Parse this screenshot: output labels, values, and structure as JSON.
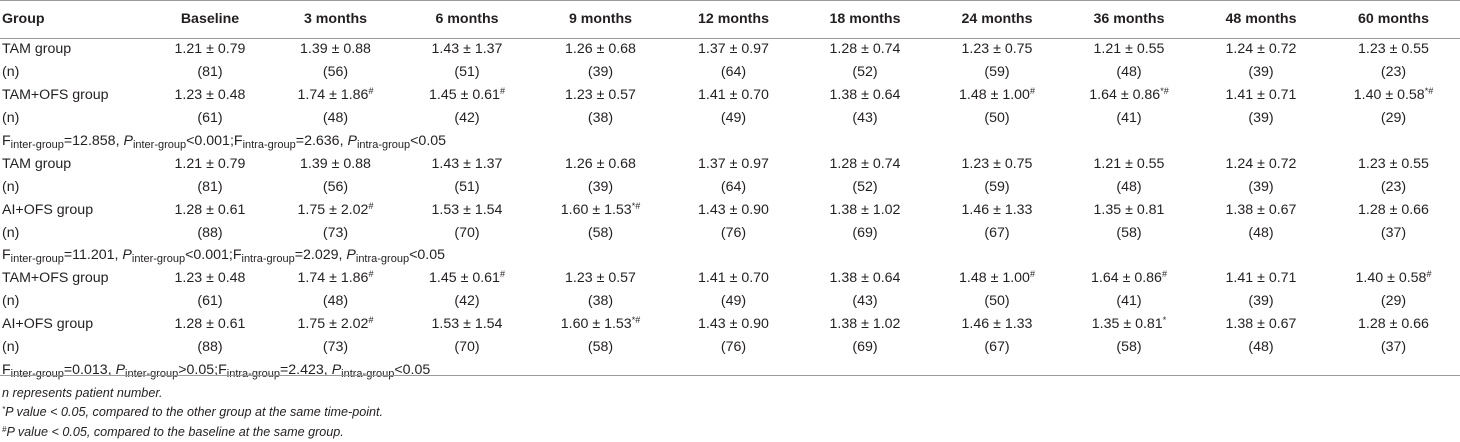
{
  "table": {
    "headers": [
      "Group",
      "Baseline",
      "3 months",
      "6 months",
      "9 months",
      "12 months",
      "18 months",
      "24 months",
      "36 months",
      "48 months",
      "60 months"
    ],
    "blocks": [
      {
        "rows": [
          {
            "label": "TAM group",
            "cells": [
              {
                "v": "1.21 ± 0.79",
                "s": ""
              },
              {
                "v": "1.39 ± 0.88",
                "s": ""
              },
              {
                "v": "1.43 ± 1.37",
                "s": ""
              },
              {
                "v": "1.26 ± 0.68",
                "s": ""
              },
              {
                "v": "1.37 ± 0.97",
                "s": ""
              },
              {
                "v": "1.28 ± 0.74",
                "s": ""
              },
              {
                "v": "1.23 ± 0.75",
                "s": ""
              },
              {
                "v": "1.21 ± 0.55",
                "s": ""
              },
              {
                "v": "1.24 ± 0.72",
                "s": ""
              },
              {
                "v": "1.23 ± 0.55",
                "s": ""
              }
            ]
          },
          {
            "label": "(n)",
            "cells": [
              {
                "v": "(81)",
                "s": ""
              },
              {
                "v": "(56)",
                "s": ""
              },
              {
                "v": "(51)",
                "s": ""
              },
              {
                "v": "(39)",
                "s": ""
              },
              {
                "v": "(64)",
                "s": ""
              },
              {
                "v": "(52)",
                "s": ""
              },
              {
                "v": "(59)",
                "s": ""
              },
              {
                "v": "(48)",
                "s": ""
              },
              {
                "v": "(39)",
                "s": ""
              },
              {
                "v": "(23)",
                "s": ""
              }
            ]
          },
          {
            "label": "TAM+OFS group",
            "cells": [
              {
                "v": "1.23 ± 0.48",
                "s": ""
              },
              {
                "v": "1.74 ± 1.86",
                "s": "#"
              },
              {
                "v": "1.45 ± 0.61",
                "s": "#"
              },
              {
                "v": "1.23 ± 0.57",
                "s": ""
              },
              {
                "v": "1.41 ± 0.70",
                "s": ""
              },
              {
                "v": "1.38 ± 0.64",
                "s": ""
              },
              {
                "v": "1.48 ± 1.00",
                "s": "#"
              },
              {
                "v": "1.64 ± 0.86",
                "s": "*#"
              },
              {
                "v": "1.41 ± 0.71",
                "s": ""
              },
              {
                "v": "1.40 ± 0.58",
                "s": "*#"
              }
            ]
          },
          {
            "label": "(n)",
            "cells": [
              {
                "v": "(61)",
                "s": ""
              },
              {
                "v": "(48)",
                "s": ""
              },
              {
                "v": "(42)",
                "s": ""
              },
              {
                "v": "(38)",
                "s": ""
              },
              {
                "v": "(49)",
                "s": ""
              },
              {
                "v": "(43)",
                "s": ""
              },
              {
                "v": "(50)",
                "s": ""
              },
              {
                "v": "(41)",
                "s": ""
              },
              {
                "v": "(39)",
                "s": ""
              },
              {
                "v": "(29)",
                "s": ""
              }
            ]
          }
        ],
        "stats": {
          "f_inter": "12.858",
          "p_inter": "<0.001",
          "f_intra": "2.636",
          "p_intra": "<0.05"
        }
      },
      {
        "rows": [
          {
            "label": "TAM group",
            "cells": [
              {
                "v": "1.21 ± 0.79",
                "s": ""
              },
              {
                "v": "1.39 ± 0.88",
                "s": ""
              },
              {
                "v": "1.43 ± 1.37",
                "s": ""
              },
              {
                "v": "1.26 ± 0.68",
                "s": ""
              },
              {
                "v": "1.37 ± 0.97",
                "s": ""
              },
              {
                "v": "1.28 ± 0.74",
                "s": ""
              },
              {
                "v": "1.23 ± 0.75",
                "s": ""
              },
              {
                "v": "1.21 ± 0.55",
                "s": ""
              },
              {
                "v": "1.24 ± 0.72",
                "s": ""
              },
              {
                "v": "1.23 ± 0.55",
                "s": ""
              }
            ]
          },
          {
            "label": "(n)",
            "cells": [
              {
                "v": "(81)",
                "s": ""
              },
              {
                "v": "(56)",
                "s": ""
              },
              {
                "v": "(51)",
                "s": ""
              },
              {
                "v": "(39)",
                "s": ""
              },
              {
                "v": "(64)",
                "s": ""
              },
              {
                "v": "(52)",
                "s": ""
              },
              {
                "v": "(59)",
                "s": ""
              },
              {
                "v": "(48)",
                "s": ""
              },
              {
                "v": "(39)",
                "s": ""
              },
              {
                "v": "(23)",
                "s": ""
              }
            ]
          },
          {
            "label": "AI+OFS group",
            "cells": [
              {
                "v": "1.28 ± 0.61",
                "s": ""
              },
              {
                "v": "1.75 ± 2.02",
                "s": "#"
              },
              {
                "v": "1.53 ± 1.54",
                "s": ""
              },
              {
                "v": "1.60 ± 1.53",
                "s": "*#"
              },
              {
                "v": "1.43 ± 0.90",
                "s": ""
              },
              {
                "v": "1.38 ± 1.02",
                "s": ""
              },
              {
                "v": "1.46 ± 1.33",
                "s": ""
              },
              {
                "v": "1.35 ± 0.81",
                "s": ""
              },
              {
                "v": "1.38 ± 0.67",
                "s": ""
              },
              {
                "v": "1.28 ± 0.66",
                "s": ""
              }
            ]
          },
          {
            "label": "(n)",
            "cells": [
              {
                "v": "(88)",
                "s": ""
              },
              {
                "v": "(73)",
                "s": ""
              },
              {
                "v": "(70)",
                "s": ""
              },
              {
                "v": "(58)",
                "s": ""
              },
              {
                "v": "(76)",
                "s": ""
              },
              {
                "v": "(69)",
                "s": ""
              },
              {
                "v": "(67)",
                "s": ""
              },
              {
                "v": "(58)",
                "s": ""
              },
              {
                "v": "(48)",
                "s": ""
              },
              {
                "v": "(37)",
                "s": ""
              }
            ]
          }
        ],
        "stats": {
          "f_inter": "11.201",
          "p_inter": "<0.001",
          "f_intra": "2.029",
          "p_intra": "<0.05"
        }
      },
      {
        "rows": [
          {
            "label": "TAM+OFS group",
            "cells": [
              {
                "v": "1.23 ± 0.48",
                "s": ""
              },
              {
                "v": "1.74 ± 1.86",
                "s": "#"
              },
              {
                "v": "1.45 ± 0.61",
                "s": "#"
              },
              {
                "v": "1.23 ± 0.57",
                "s": ""
              },
              {
                "v": "1.41 ± 0.70",
                "s": ""
              },
              {
                "v": "1.38 ± 0.64",
                "s": ""
              },
              {
                "v": "1.48 ± 1.00",
                "s": "#"
              },
              {
                "v": "1.64 ± 0.86",
                "s": "#"
              },
              {
                "v": "1.41 ± 0.71",
                "s": ""
              },
              {
                "v": "1.40 ± 0.58",
                "s": "#"
              }
            ]
          },
          {
            "label": "(n)",
            "cells": [
              {
                "v": "(61)",
                "s": ""
              },
              {
                "v": "(48)",
                "s": ""
              },
              {
                "v": "(42)",
                "s": ""
              },
              {
                "v": "(38)",
                "s": ""
              },
              {
                "v": "(49)",
                "s": ""
              },
              {
                "v": "(43)",
                "s": ""
              },
              {
                "v": "(50)",
                "s": ""
              },
              {
                "v": "(41)",
                "s": ""
              },
              {
                "v": "(39)",
                "s": ""
              },
              {
                "v": "(29)",
                "s": ""
              }
            ]
          },
          {
            "label": "AI+OFS group",
            "cells": [
              {
                "v": "1.28 ± 0.61",
                "s": ""
              },
              {
                "v": "1.75 ± 2.02",
                "s": "#"
              },
              {
                "v": "1.53 ± 1.54",
                "s": ""
              },
              {
                "v": "1.60 ± 1.53",
                "s": "*#"
              },
              {
                "v": "1.43 ± 0.90",
                "s": ""
              },
              {
                "v": "1.38 ± 1.02",
                "s": ""
              },
              {
                "v": "1.46 ± 1.33",
                "s": ""
              },
              {
                "v": "1.35 ± 0.81",
                "s": "*"
              },
              {
                "v": "1.38 ± 0.67",
                "s": ""
              },
              {
                "v": "1.28 ± 0.66",
                "s": ""
              }
            ]
          },
          {
            "label": "(n)",
            "cells": [
              {
                "v": "(88)",
                "s": ""
              },
              {
                "v": "(73)",
                "s": ""
              },
              {
                "v": "(70)",
                "s": ""
              },
              {
                "v": "(58)",
                "s": ""
              },
              {
                "v": "(76)",
                "s": ""
              },
              {
                "v": "(69)",
                "s": ""
              },
              {
                "v": "(67)",
                "s": ""
              },
              {
                "v": "(58)",
                "s": ""
              },
              {
                "v": "(48)",
                "s": ""
              },
              {
                "v": "(37)",
                "s": ""
              }
            ]
          }
        ],
        "stats": {
          "f_inter": "0.013",
          "p_inter": ">0.05",
          "f_intra": "2.423",
          "p_intra": "<0.05"
        }
      }
    ],
    "stat_text": {
      "F": "F",
      "P": "P",
      "inter": "inter-group",
      "intra": "intra-group",
      "eq": "=",
      "sep": ", ",
      "semi": ";"
    }
  },
  "footnotes": [
    {
      "mark": "",
      "text": "n represents patient number."
    },
    {
      "mark": "*",
      "text": "P value < 0.05, compared to the other group at the same time-point."
    },
    {
      "mark": "#",
      "text": "P value < 0.05, compared to the baseline at the same group."
    }
  ]
}
